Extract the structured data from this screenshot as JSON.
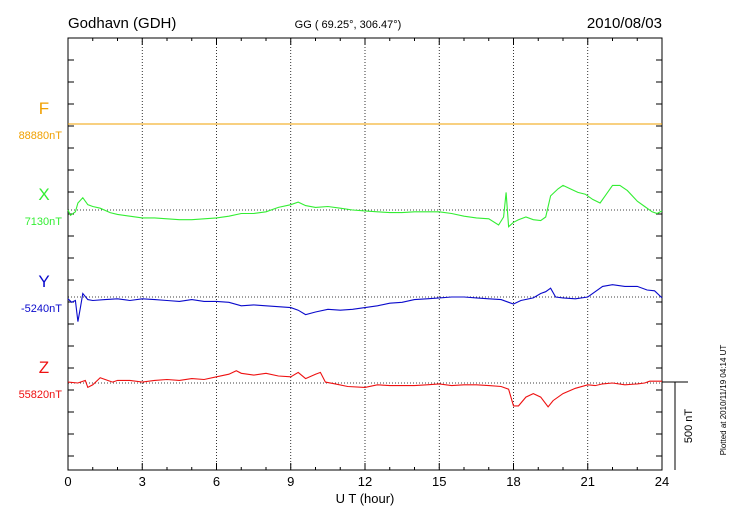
{
  "header": {
    "station": "Godhavn (GDH)",
    "coords": "GG ( 69.25°, 306.47°)",
    "date": "2010/08/03"
  },
  "plotted_note": "Plotted at 2010/11/19 04:14 UT",
  "scale_label": "500 nT",
  "chart_data": {
    "type": "line",
    "xlabel": "U T (hour)",
    "xlim": [
      0,
      24
    ],
    "xticks": [
      "0",
      "3",
      "6",
      "9",
      "12",
      "15",
      "18",
      "21",
      "24"
    ],
    "scale_bar_nT": 500,
    "series": [
      {
        "name": "F",
        "baseline_label": "88880nT",
        "color": "#f0a000",
        "points": [
          [
            0,
            0
          ],
          [
            6,
            0
          ],
          [
            12,
            0
          ],
          [
            18,
            0
          ],
          [
            24,
            0
          ]
        ]
      },
      {
        "name": "X",
        "baseline_label": "7130nT",
        "color": "#33ee33",
        "points": [
          [
            0,
            0
          ],
          [
            0.1,
            -30
          ],
          [
            0.3,
            -10
          ],
          [
            0.4,
            40
          ],
          [
            0.6,
            70
          ],
          [
            0.8,
            30
          ],
          [
            1,
            20
          ],
          [
            1.3,
            10
          ],
          [
            1.7,
            -15
          ],
          [
            2,
            -25
          ],
          [
            2.5,
            -35
          ],
          [
            3,
            -45
          ],
          [
            3.5,
            -45
          ],
          [
            4,
            -50
          ],
          [
            4.5,
            -55
          ],
          [
            5,
            -55
          ],
          [
            5.5,
            -50
          ],
          [
            6,
            -45
          ],
          [
            6.5,
            -35
          ],
          [
            7,
            -20
          ],
          [
            7.5,
            -20
          ],
          [
            8,
            -10
          ],
          [
            8.5,
            15
          ],
          [
            9,
            30
          ],
          [
            9.3,
            45
          ],
          [
            9.6,
            25
          ],
          [
            10,
            15
          ],
          [
            10.5,
            20
          ],
          [
            11,
            10
          ],
          [
            11.5,
            0
          ],
          [
            12,
            -5
          ],
          [
            12.5,
            -10
          ],
          [
            13,
            -15
          ],
          [
            13.5,
            -15
          ],
          [
            14,
            -10
          ],
          [
            14.5,
            -10
          ],
          [
            15,
            -10
          ],
          [
            15.5,
            -20
          ],
          [
            16,
            -35
          ],
          [
            16.5,
            -45
          ],
          [
            17,
            -50
          ],
          [
            17.4,
            -85
          ],
          [
            17.6,
            -40
          ],
          [
            17.7,
            100
          ],
          [
            17.8,
            -95
          ],
          [
            18,
            -70
          ],
          [
            18.2,
            -55
          ],
          [
            18.5,
            -40
          ],
          [
            18.8,
            -55
          ],
          [
            19.1,
            -60
          ],
          [
            19.3,
            -40
          ],
          [
            19.5,
            80
          ],
          [
            19.8,
            120
          ],
          [
            20,
            140
          ],
          [
            20.3,
            120
          ],
          [
            20.6,
            100
          ],
          [
            20.9,
            90
          ],
          [
            21.2,
            60
          ],
          [
            21.5,
            40
          ],
          [
            21.7,
            80
          ],
          [
            22,
            140
          ],
          [
            22.3,
            140
          ],
          [
            22.6,
            110
          ],
          [
            23,
            50
          ],
          [
            23.3,
            20
          ],
          [
            23.6,
            -10
          ],
          [
            23.8,
            -20
          ],
          [
            24,
            -5
          ]
        ]
      },
      {
        "name": "Y",
        "baseline_label": "-5240nT",
        "color": "#0a0acc",
        "points": [
          [
            0,
            -10
          ],
          [
            0.15,
            -30
          ],
          [
            0.3,
            -20
          ],
          [
            0.4,
            -140
          ],
          [
            0.5,
            -60
          ],
          [
            0.6,
            20
          ],
          [
            0.8,
            -15
          ],
          [
            1,
            -20
          ],
          [
            1.5,
            -15
          ],
          [
            2,
            -10
          ],
          [
            2.5,
            -20
          ],
          [
            3,
            -10
          ],
          [
            3.5,
            -15
          ],
          [
            4,
            -20
          ],
          [
            4.5,
            -25
          ],
          [
            5,
            -15
          ],
          [
            5.5,
            -25
          ],
          [
            6,
            -25
          ],
          [
            6.5,
            -30
          ],
          [
            7,
            -50
          ],
          [
            7.5,
            -45
          ],
          [
            8,
            -50
          ],
          [
            8.5,
            -55
          ],
          [
            9,
            -60
          ],
          [
            9.3,
            -75
          ],
          [
            9.6,
            -100
          ],
          [
            10,
            -85
          ],
          [
            10.5,
            -70
          ],
          [
            11,
            -75
          ],
          [
            11.5,
            -70
          ],
          [
            12,
            -60
          ],
          [
            12.5,
            -50
          ],
          [
            13,
            -35
          ],
          [
            13.5,
            -30
          ],
          [
            14,
            -15
          ],
          [
            14.5,
            -10
          ],
          [
            15,
            -5
          ],
          [
            15.5,
            0
          ],
          [
            16,
            0
          ],
          [
            16.5,
            -5
          ],
          [
            17,
            -10
          ],
          [
            17.5,
            -15
          ],
          [
            17.8,
            -30
          ],
          [
            18,
            -40
          ],
          [
            18.3,
            -20
          ],
          [
            18.8,
            -5
          ],
          [
            19.1,
            20
          ],
          [
            19.3,
            30
          ],
          [
            19.5,
            50
          ],
          [
            19.7,
            0
          ],
          [
            20,
            -5
          ],
          [
            20.5,
            -10
          ],
          [
            21,
            0
          ],
          [
            21.3,
            30
          ],
          [
            21.6,
            60
          ],
          [
            22,
            70
          ],
          [
            22.5,
            60
          ],
          [
            23,
            60
          ],
          [
            23.4,
            40
          ],
          [
            23.7,
            35
          ],
          [
            24,
            -5
          ]
        ]
      },
      {
        "name": "Z",
        "baseline_label": "55820nT",
        "color": "#ee1111",
        "points": [
          [
            0,
            5
          ],
          [
            0.4,
            0
          ],
          [
            0.7,
            15
          ],
          [
            0.8,
            -25
          ],
          [
            1.0,
            -10
          ],
          [
            1.3,
            30
          ],
          [
            1.8,
            5
          ],
          [
            2,
            15
          ],
          [
            2.5,
            15
          ],
          [
            3,
            5
          ],
          [
            3.5,
            15
          ],
          [
            4,
            20
          ],
          [
            4.5,
            15
          ],
          [
            5,
            25
          ],
          [
            5.5,
            20
          ],
          [
            6,
            35
          ],
          [
            6.5,
            50
          ],
          [
            6.8,
            70
          ],
          [
            7,
            55
          ],
          [
            7.5,
            45
          ],
          [
            8,
            55
          ],
          [
            8.5,
            40
          ],
          [
            9,
            35
          ],
          [
            9.3,
            60
          ],
          [
            9.6,
            25
          ],
          [
            10,
            50
          ],
          [
            10.2,
            60
          ],
          [
            10.4,
            5
          ],
          [
            10.8,
            -5
          ],
          [
            11.3,
            -20
          ],
          [
            12,
            -25
          ],
          [
            12.5,
            -10
          ],
          [
            13,
            -15
          ],
          [
            13.5,
            -15
          ],
          [
            14,
            -15
          ],
          [
            14.5,
            -10
          ],
          [
            15,
            -5
          ],
          [
            15.5,
            -15
          ],
          [
            16,
            -10
          ],
          [
            16.5,
            -10
          ],
          [
            17,
            -15
          ],
          [
            17.5,
            -20
          ],
          [
            17.8,
            -35
          ],
          [
            18,
            -130
          ],
          [
            18.2,
            -130
          ],
          [
            18.5,
            -80
          ],
          [
            18.8,
            -60
          ],
          [
            19.1,
            -80
          ],
          [
            19.4,
            -135
          ],
          [
            19.6,
            -100
          ],
          [
            20,
            -60
          ],
          [
            20.5,
            -30
          ],
          [
            21,
            -10
          ],
          [
            21.3,
            -15
          ],
          [
            21.6,
            -5
          ],
          [
            22,
            0
          ],
          [
            22.5,
            -10
          ],
          [
            23,
            -5
          ],
          [
            23.3,
            0
          ],
          [
            23.5,
            10
          ],
          [
            24,
            10
          ]
        ]
      }
    ]
  }
}
